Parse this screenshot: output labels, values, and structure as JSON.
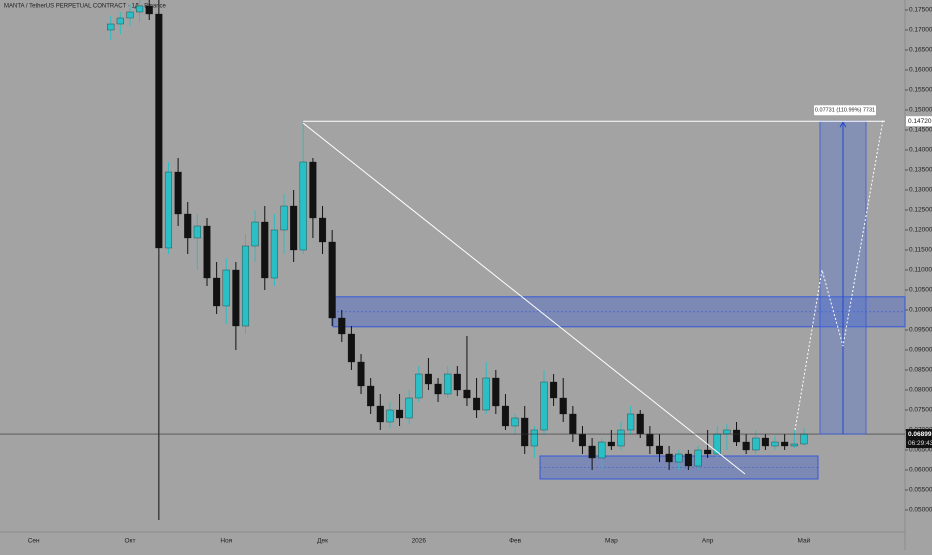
{
  "chart_data": {
    "type": "candlestick",
    "title": "MANTA / TetherUS PERPETUAL CONTRACT · 1Д · Binance",
    "categories": [
      null,
      null,
      null,
      "Сен",
      null,
      null,
      null,
      null,
      null,
      null,
      null,
      null,
      null,
      "Окт",
      null,
      null,
      null,
      null,
      null,
      null,
      null,
      null,
      null,
      "Ноя",
      null,
      null,
      null,
      null,
      null,
      null,
      null,
      null,
      null,
      "Дек",
      null,
      null,
      null,
      null,
      null,
      null,
      null,
      null,
      null,
      "2026",
      null,
      null,
      null,
      null,
      null,
      null,
      null,
      null,
      null,
      "Фев",
      null,
      null,
      null,
      null,
      null,
      null,
      null,
      null,
      null,
      "Мар",
      null,
      null,
      null,
      null,
      null,
      null,
      null,
      null,
      null,
      "Апр",
      null,
      null,
      null,
      null,
      null,
      null,
      null,
      null,
      null,
      "Май",
      null,
      null,
      null,
      null,
      null,
      null,
      null,
      null,
      null,
      null
    ],
    "candles": [
      null,
      null,
      null,
      null,
      null,
      null,
      null,
      null,
      null,
      null,
      null,
      [
        0.17,
        0.1735,
        0.1675,
        0.1715
      ],
      [
        0.1715,
        0.1745,
        0.169,
        0.173
      ],
      [
        0.173,
        0.1765,
        0.171,
        0.1745
      ],
      [
        0.1745,
        0.1775,
        0.172,
        0.176
      ],
      [
        0.176,
        0.1775,
        0.1725,
        0.174
      ],
      [
        0.174,
        0.1775,
        0.0475,
        0.1155
      ],
      [
        0.1155,
        0.137,
        0.114,
        0.1345
      ],
      [
        0.1345,
        0.138,
        0.121,
        0.124
      ],
      [
        0.124,
        0.127,
        0.114,
        0.118
      ],
      [
        0.118,
        0.124,
        0.11,
        0.121
      ],
      [
        0.121,
        0.123,
        0.106,
        0.108
      ],
      [
        0.108,
        0.112,
        0.099,
        0.101
      ],
      [
        0.101,
        0.113,
        0.0965,
        0.11
      ],
      [
        0.11,
        0.112,
        0.09,
        0.096
      ],
      [
        0.096,
        0.119,
        0.094,
        0.116
      ],
      [
        0.116,
        0.125,
        0.112,
        0.122
      ],
      [
        0.122,
        0.126,
        0.105,
        0.108
      ],
      [
        0.108,
        0.124,
        0.106,
        0.12
      ],
      [
        0.12,
        0.129,
        0.114,
        0.126
      ],
      [
        0.126,
        0.13,
        0.112,
        0.115
      ],
      [
        0.115,
        0.1467,
        0.114,
        0.137
      ],
      [
        0.137,
        0.138,
        0.118,
        0.123
      ],
      [
        0.123,
        0.126,
        0.114,
        0.117
      ],
      [
        0.117,
        0.12,
        0.096,
        0.098
      ],
      [
        0.098,
        0.1,
        0.092,
        0.094
      ],
      [
        0.094,
        0.096,
        0.085,
        0.087
      ],
      [
        0.087,
        0.089,
        0.079,
        0.081
      ],
      [
        0.081,
        0.083,
        0.074,
        0.076
      ],
      [
        0.076,
        0.079,
        0.07,
        0.072
      ],
      [
        0.072,
        0.077,
        0.0705,
        0.075
      ],
      [
        0.075,
        0.079,
        0.071,
        0.073
      ],
      [
        0.073,
        0.08,
        0.0715,
        0.078
      ],
      [
        0.078,
        0.086,
        0.077,
        0.084
      ],
      [
        0.084,
        0.088,
        0.08,
        0.0815
      ],
      [
        0.0815,
        0.083,
        0.077,
        0.079
      ],
      [
        0.079,
        0.086,
        0.078,
        0.084
      ],
      [
        0.084,
        0.086,
        0.0785,
        0.08
      ],
      [
        0.08,
        0.0935,
        0.076,
        0.078
      ],
      [
        0.078,
        0.083,
        0.073,
        0.075
      ],
      [
        0.075,
        0.087,
        0.074,
        0.083
      ],
      [
        0.083,
        0.085,
        0.074,
        0.076
      ],
      [
        0.076,
        0.079,
        0.07,
        0.071
      ],
      [
        0.071,
        0.074,
        0.069,
        0.073
      ],
      [
        0.073,
        0.076,
        0.064,
        0.066
      ],
      [
        0.066,
        0.071,
        0.063,
        0.07
      ],
      [
        0.07,
        0.085,
        0.069,
        0.082
      ],
      [
        0.082,
        0.084,
        0.076,
        0.078
      ],
      [
        0.078,
        0.083,
        0.072,
        0.074
      ],
      [
        0.074,
        0.076,
        0.067,
        0.069
      ],
      [
        0.069,
        0.071,
        0.064,
        0.066
      ],
      [
        0.066,
        0.068,
        0.06,
        0.063
      ],
      [
        0.063,
        0.068,
        0.06,
        0.067
      ],
      [
        0.067,
        0.07,
        0.065,
        0.066
      ],
      [
        0.066,
        0.072,
        0.065,
        0.07
      ],
      [
        0.07,
        0.076,
        0.069,
        0.074
      ],
      [
        0.074,
        0.075,
        0.068,
        0.069
      ],
      [
        0.069,
        0.071,
        0.064,
        0.066
      ],
      [
        0.066,
        0.069,
        0.062,
        0.064
      ],
      [
        0.064,
        0.066,
        0.06,
        0.062
      ],
      [
        0.062,
        0.065,
        0.06,
        0.064
      ],
      [
        0.064,
        0.065,
        0.06,
        0.061
      ],
      [
        0.061,
        0.066,
        0.06,
        0.065
      ],
      [
        0.065,
        0.07,
        0.063,
        0.064
      ],
      [
        0.064,
        0.071,
        0.063,
        0.069
      ],
      [
        0.069,
        0.0715,
        0.065,
        0.07
      ],
      [
        0.07,
        0.072,
        0.066,
        0.067
      ],
      [
        0.067,
        0.069,
        0.064,
        0.065
      ],
      [
        0.065,
        0.07,
        0.064,
        0.068
      ],
      [
        0.068,
        0.069,
        0.065,
        0.066
      ],
      [
        0.066,
        0.0685,
        0.065,
        0.067
      ],
      [
        0.067,
        0.069,
        0.065,
        0.066
      ],
      [
        0.066,
        0.07,
        0.0655,
        0.0665
      ],
      [
        0.0665,
        0.0705,
        0.066,
        0.06899
      ],
      null,
      null,
      null,
      null,
      null,
      null,
      null,
      null,
      null,
      null
    ],
    "up_color": "#29bfc4",
    "down_color": "#121212",
    "ylim": [
      0.0445,
      0.1775
    ],
    "yticks": [
      {
        "value": 0.05,
        "label": "0.05000"
      },
      {
        "value": 0.055,
        "label": "0.05500"
      },
      {
        "value": 0.06,
        "label": "0.06000"
      },
      {
        "value": 0.065,
        "label": "0.06500"
      },
      {
        "value": 0.07,
        "label": "0.07000"
      },
      {
        "value": 0.075,
        "label": "0.07500"
      },
      {
        "value": 0.08,
        "label": "0.08000"
      },
      {
        "value": 0.085,
        "label": "0.08500"
      },
      {
        "value": 0.09,
        "label": "0.09000"
      },
      {
        "value": 0.095,
        "label": "0.09500"
      },
      {
        "value": 0.1,
        "label": "0.10000"
      },
      {
        "value": 0.105,
        "label": "0.10500"
      },
      {
        "value": 0.11,
        "label": "0.11000"
      },
      {
        "value": 0.115,
        "label": "0.11500"
      },
      {
        "value": 0.12,
        "label": "0.12000"
      },
      {
        "value": 0.125,
        "label": "0.12500"
      },
      {
        "value": 0.13,
        "label": "0.13000"
      },
      {
        "value": 0.135,
        "label": "0.13500"
      },
      {
        "value": 0.14,
        "label": "0.14000"
      },
      {
        "value": 0.145,
        "label": "0.14500"
      },
      {
        "value": 0.15,
        "label": "0.15000"
      },
      {
        "value": 0.155,
        "label": "0.15500"
      },
      {
        "value": 0.16,
        "label": "0.16000"
      },
      {
        "value": 0.165,
        "label": "0.16500"
      },
      {
        "value": 0.17,
        "label": "0.17000"
      },
      {
        "value": 0.175,
        "label": "0.17500"
      }
    ],
    "grid": false,
    "zones": [
      {
        "top": 0.1033,
        "bottom": 0.0958
      },
      {
        "top": 0.0635,
        "bottom": 0.05775
      }
    ],
    "zone_color": "#3558d8",
    "trendline": [
      0.1467,
      0.059
    ],
    "target": {
      "value": 0.1472,
      "label": "0.14720"
    },
    "last_price": 0.06899,
    "countdown": "06:29:43",
    "measure_label": "0.07731 (110.99%) 7731",
    "projection": [
      0.07,
      0.11,
      0.091,
      0.1475
    ]
  }
}
